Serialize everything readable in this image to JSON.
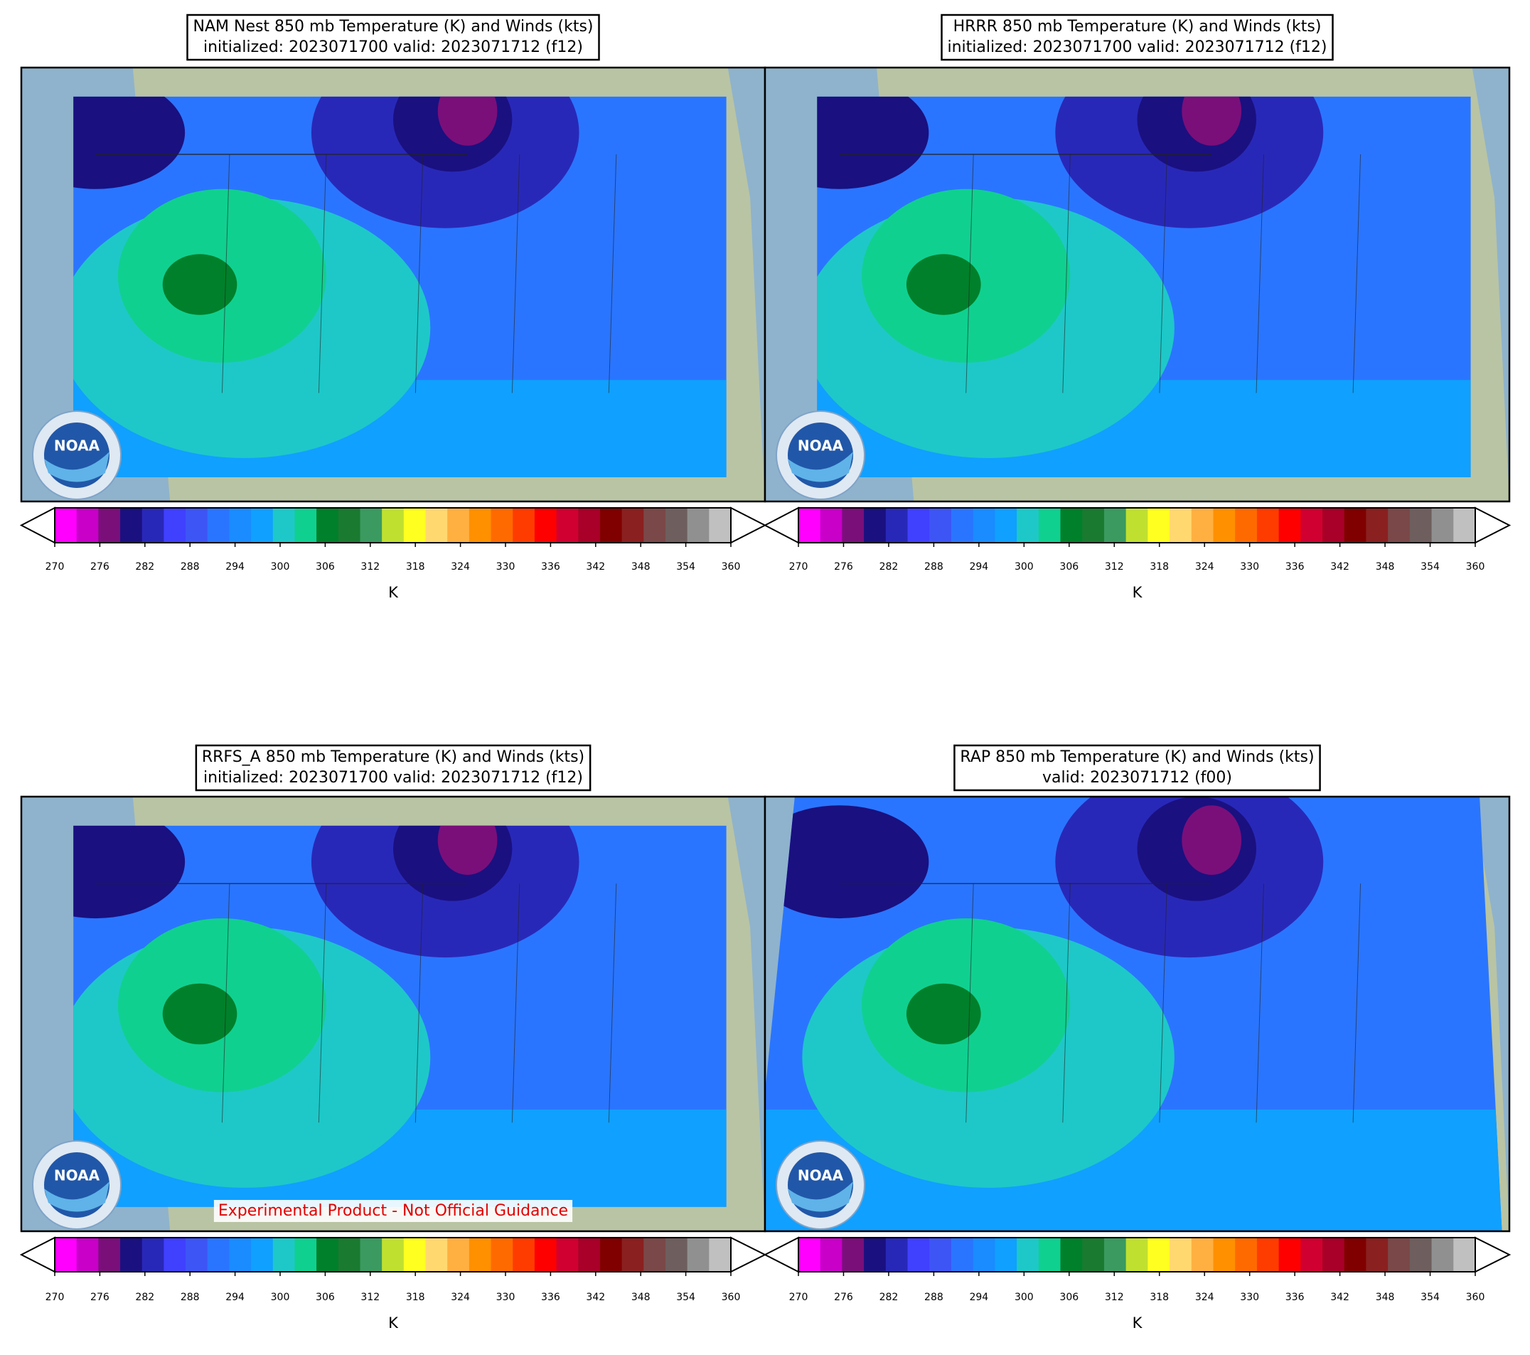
{
  "panels": [
    {
      "title": [
        "NAM Nest 850 mb Temperature (K) and Winds (kts)",
        "initialized: 2023071700 valid: 2023071712 (f12)"
      ]
    },
    {
      "title": [
        "HRRR 850 mb Temperature (K) and Winds (kts)",
        "initialized: 2023071700 valid: 2023071712 (f12)"
      ]
    },
    {
      "title": [
        "RRFS_A 850 mb Temperature (K) and Winds (kts)",
        "initialized: 2023071700 valid: 2023071712 (f12)"
      ],
      "note": "Experimental Product - Not Official Guidance"
    },
    {
      "title": [
        "RAP 850 mb Temperature (K) and Winds (kts)",
        "valid: 2023071712 (f00)"
      ],
      "full_domain": true
    }
  ],
  "colorbar": {
    "type": "colorbar",
    "clim": [
      270,
      360
    ],
    "ticks": [
      270,
      276,
      282,
      288,
      294,
      300,
      306,
      312,
      318,
      324,
      330,
      336,
      342,
      348,
      354,
      360
    ],
    "colors": [
      "#ff00ff",
      "#c800c8",
      "#7a0f7a",
      "#1a1080",
      "#2828b8",
      "#4040ff",
      "#3d55f5",
      "#2a75ff",
      "#1a8cff",
      "#10a0ff",
      "#1ec8c8",
      "#10d090",
      "#00802a",
      "#1a7a30",
      "#3a9a60",
      "#c0e030",
      "#ffff20",
      "#ffd870",
      "#ffb040",
      "#ff9000",
      "#ff6a00",
      "#ff3c00",
      "#ff0000",
      "#d00030",
      "#a80028",
      "#800000",
      "#8a2020",
      "#7a4848",
      "#6e5e5e",
      "#909090",
      "#c0c0c0"
    ],
    "label": "K"
  },
  "logo_text": "NOAA"
}
